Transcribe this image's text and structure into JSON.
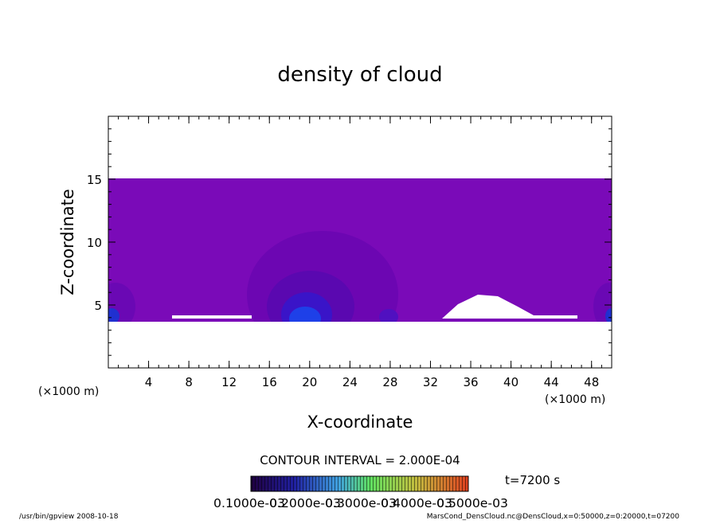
{
  "chart_data": {
    "type": "contour",
    "title": "density of cloud",
    "xlabel": "X-coordinate",
    "ylabel": "Z-coordinate",
    "xunit": "(×1000 m)",
    "yunit": "(×1000 m)",
    "xlim": [
      0,
      50
    ],
    "ylim": [
      0,
      20
    ],
    "xticks": [
      4,
      8,
      12,
      16,
      20,
      24,
      28,
      32,
      36,
      40,
      44,
      48
    ],
    "yticks": [
      5,
      10,
      15
    ],
    "contour_interval": "CONTOUR INTERVAL = 2.000E-04",
    "time": "t=7200 s",
    "colorbar_labels": [
      "0.1000e-03",
      "0.2000e-03",
      "0.3000e-03",
      "0.4000e-03",
      "0.5000e-03"
    ],
    "footer_left": "/usr/bin/gpview   2008-10-18",
    "footer_right": "MarsCond_DensCloud.nc@DensCloud,x=0:50000,z=0:20000,t=07200"
  }
}
